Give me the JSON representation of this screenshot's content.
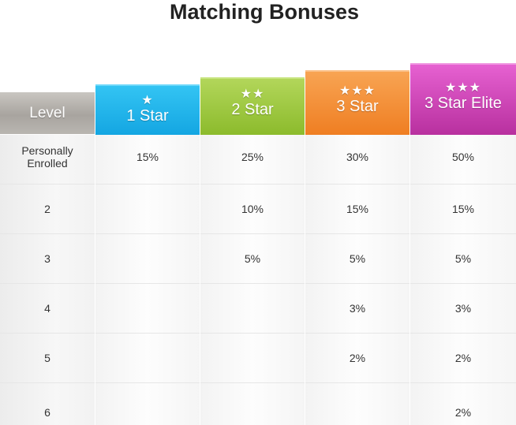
{
  "title": "Matching Bonuses",
  "headers": {
    "level": {
      "label": "Level",
      "stars": ""
    },
    "one_star": {
      "label": "1 Star",
      "stars": "★"
    },
    "two_star": {
      "label": "2 Star",
      "stars": "★★"
    },
    "three_star": {
      "label": "3 Star",
      "stars": "★★★"
    },
    "elite": {
      "label": "3 Star Elite",
      "stars": "★★★"
    }
  },
  "colors": {
    "level": "#b0aca7",
    "one_star": "#1fb0ea",
    "two_star": "#9fc846",
    "three_star": "#f38d36",
    "elite": "#cc45b6"
  },
  "rows": [
    {
      "level": "Personally Enrolled",
      "one_star": "15%",
      "two_star": "25%",
      "three_star": "30%",
      "elite": "50%"
    },
    {
      "level": "2",
      "one_star": "",
      "two_star": "10%",
      "three_star": "15%",
      "elite": "15%"
    },
    {
      "level": "3",
      "one_star": "",
      "two_star": "5%",
      "three_star": "5%",
      "elite": "5%"
    },
    {
      "level": "4",
      "one_star": "",
      "two_star": "",
      "three_star": "3%",
      "elite": "3%"
    },
    {
      "level": "5",
      "one_star": "",
      "two_star": "",
      "three_star": "2%",
      "elite": "2%"
    },
    {
      "level": "6",
      "one_star": "",
      "two_star": "",
      "three_star": "",
      "elite": "2%"
    }
  ]
}
